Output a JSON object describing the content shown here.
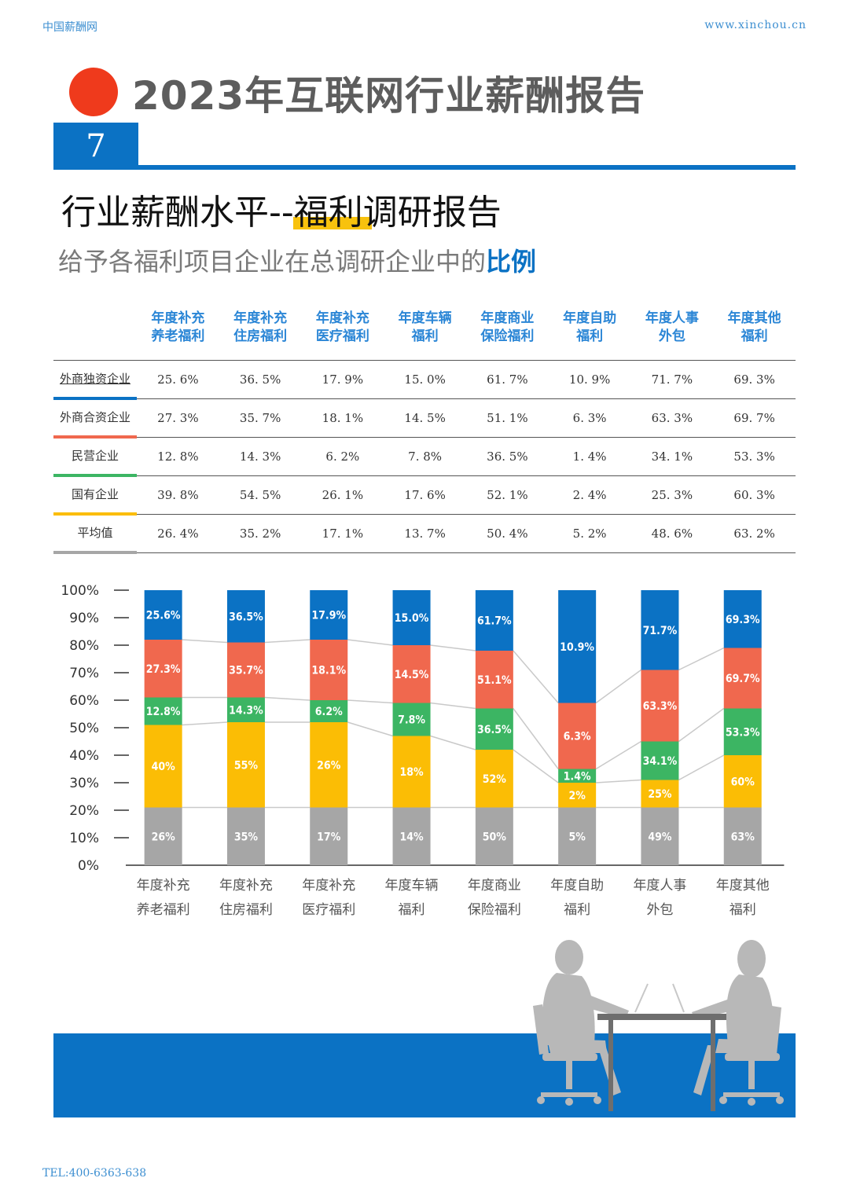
{
  "header": {
    "brand_left": "中国薪酬网",
    "brand_right": "www.xinchou.cn",
    "report_title": "2023年互联网行业薪酬报告",
    "page_number": "7",
    "section_title": "行业薪酬水平--福利调研报告",
    "subtitle_main": "给予各福利项目企业在总调研企业中的",
    "subtitle_accent": "比例"
  },
  "table": {
    "columns": [
      {
        "line1": "年度补充",
        "line2": "养老福利"
      },
      {
        "line1": "年度补充",
        "line2": "住房福利"
      },
      {
        "line1": "年度补充",
        "line2": "医疗福利"
      },
      {
        "line1": "年度车辆",
        "line2": "福利"
      },
      {
        "line1": "年度商业",
        "line2": "保险福利"
      },
      {
        "line1": "年度自助",
        "line2": "福利"
      },
      {
        "line1": "年度人事",
        "line2": "外包"
      },
      {
        "line1": "年度其他",
        "line2": "福利"
      }
    ],
    "rows": [
      {
        "label": "外商独资企业",
        "color": "#0b72c4",
        "values": [
          "25. 6%",
          "36. 5%",
          "17. 9%",
          "15. 0%",
          "61. 7%",
          "10. 9%",
          "71. 7%",
          "69. 3%"
        ]
      },
      {
        "label": "外商合资企业",
        "color": "#f0684e",
        "values": [
          "27. 3%",
          "35. 7%",
          "18. 1%",
          "14. 5%",
          "51. 1%",
          "6. 3%",
          "63. 3%",
          "69. 7%"
        ]
      },
      {
        "label": "民营企业",
        "color": "#3cb563",
        "values": [
          "12. 8%",
          "14. 3%",
          "6. 2%",
          "7. 8%",
          "36. 5%",
          "1. 4%",
          "34. 1%",
          "53. 3%"
        ]
      },
      {
        "label": "国有企业",
        "color": "#fbbd05",
        "values": [
          "39. 8%",
          "54. 5%",
          "26. 1%",
          "17. 6%",
          "52. 1%",
          "2. 4%",
          "25. 3%",
          "60. 3%"
        ]
      },
      {
        "label": "平均值",
        "color": "#a6a6a6",
        "values": [
          "26. 4%",
          "35. 2%",
          "17. 1%",
          "13. 7%",
          "50. 4%",
          "5. 2%",
          "48. 6%",
          "63. 2%"
        ]
      }
    ]
  },
  "chart_data": {
    "type": "bar",
    "stacked": true,
    "categories": [
      [
        "年度补充",
        "养老福利"
      ],
      [
        "年度补充",
        "住房福利"
      ],
      [
        "年度补充",
        "医疗福利"
      ],
      [
        "年度车辆",
        "福利"
      ],
      [
        "年度商业",
        "保险福利"
      ],
      [
        "年度自助",
        "福利"
      ],
      [
        "年度人事",
        "外包"
      ],
      [
        "年度其他",
        "福利"
      ]
    ],
    "yticks": [
      "0%",
      "10%",
      "20%",
      "30%",
      "40%",
      "50%",
      "60%",
      "70%",
      "80%",
      "90%",
      "100%"
    ],
    "ylim": [
      0,
      100
    ],
    "series_order_bottom_to_top": [
      "平均值",
      "国有企业",
      "民营企业",
      "外商合资企业",
      "外商独资企业"
    ],
    "series": [
      {
        "name": "平均值",
        "color": "#a6a6a6",
        "values": [
          21,
          21,
          21,
          21,
          21,
          21,
          21,
          21
        ],
        "labels": [
          "26%",
          "35%",
          "17%",
          "14%",
          "50%",
          "5%",
          "49%",
          "63%"
        ]
      },
      {
        "name": "国有企业",
        "color": "#fbbd05",
        "values": [
          30,
          31,
          31,
          26,
          21,
          9,
          10,
          19
        ],
        "labels": [
          "40%",
          "55%",
          "26%",
          "18%",
          "52%",
          "2%",
          "25%",
          "60%"
        ]
      },
      {
        "name": "民营企业",
        "color": "#3cb563",
        "values": [
          10,
          9,
          8,
          12,
          15,
          5,
          14,
          17
        ],
        "labels": [
          "12.8%",
          "14.3%",
          "6.2%",
          "7.8%",
          "36.5%",
          "1.4%",
          "34.1%",
          "53.3%"
        ]
      },
      {
        "name": "外商合资企业",
        "color": "#f0684e",
        "values": [
          21,
          20,
          22,
          21,
          21,
          24,
          26,
          22
        ],
        "labels": [
          "27.3%",
          "35.7%",
          "18.1%",
          "14.5%",
          "51.1%",
          "6.3%",
          "63.3%",
          "69.7%"
        ]
      },
      {
        "name": "外商独资企业",
        "color": "#0b72c4",
        "values": [
          18,
          19,
          18,
          20,
          22,
          41,
          29,
          21
        ],
        "labels": [
          "25.6%",
          "36.5%",
          "17.9%",
          "15.0%",
          "61.7%",
          "10.9%",
          "71.7%",
          "69.3%"
        ]
      }
    ]
  },
  "footer": {
    "tel": "TEL:400-6363-638"
  }
}
